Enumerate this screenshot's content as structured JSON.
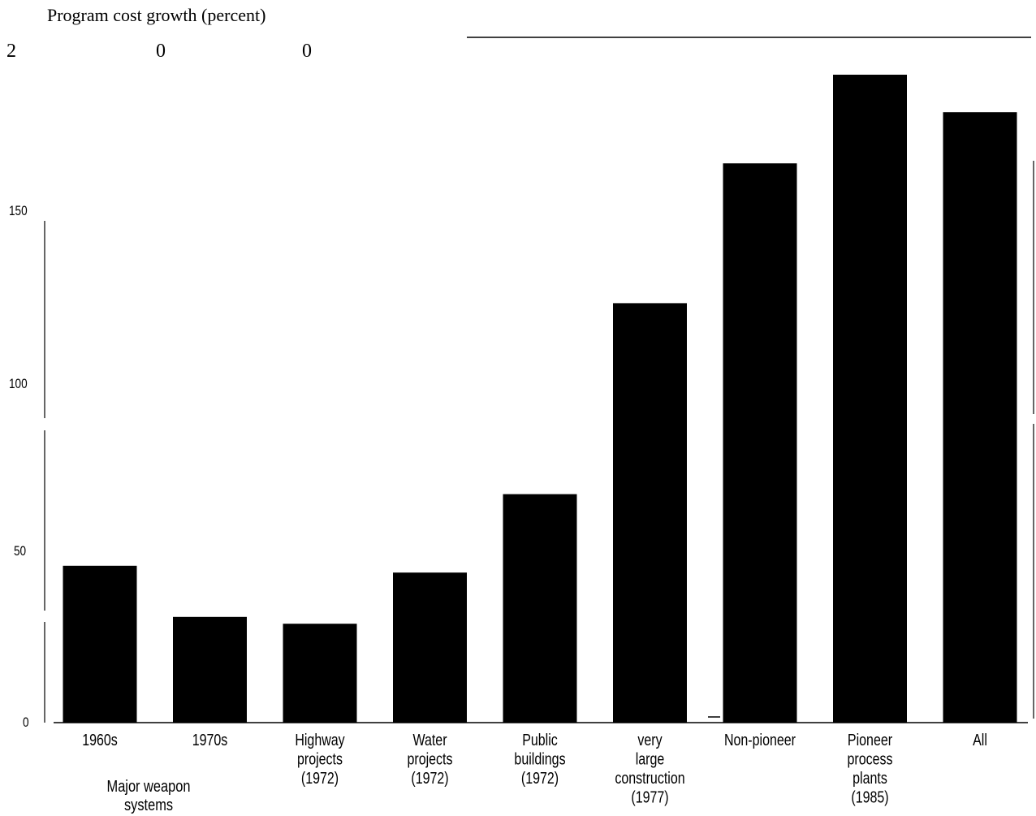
{
  "chart_data": {
    "type": "bar",
    "ylabel": "Program cost growth (percent)",
    "top_tick_label": [
      "2",
      "0",
      "0"
    ],
    "yticks": [
      "0",
      "50",
      "100",
      "150"
    ],
    "ylim": [
      0,
      200
    ],
    "grid": false,
    "categories": [
      [
        "1960s"
      ],
      [
        "1970s"
      ],
      [
        "Highway",
        "projects",
        "(1972)"
      ],
      [
        "Water",
        "projects",
        "(1972)"
      ],
      [
        "Public",
        "buildings",
        "(1972)"
      ],
      [
        "very",
        "large",
        "construction",
        "(1977)"
      ],
      [
        "Non-pioneer"
      ],
      [
        "Pioneer",
        "process",
        "plants",
        "(1985)"
      ],
      [
        "All"
      ]
    ],
    "group_label": [
      "Major weapon",
      "systems"
    ],
    "values": [
      46,
      31,
      29,
      44,
      67,
      123,
      164,
      190,
      179
    ],
    "bar_color": "#000000"
  }
}
